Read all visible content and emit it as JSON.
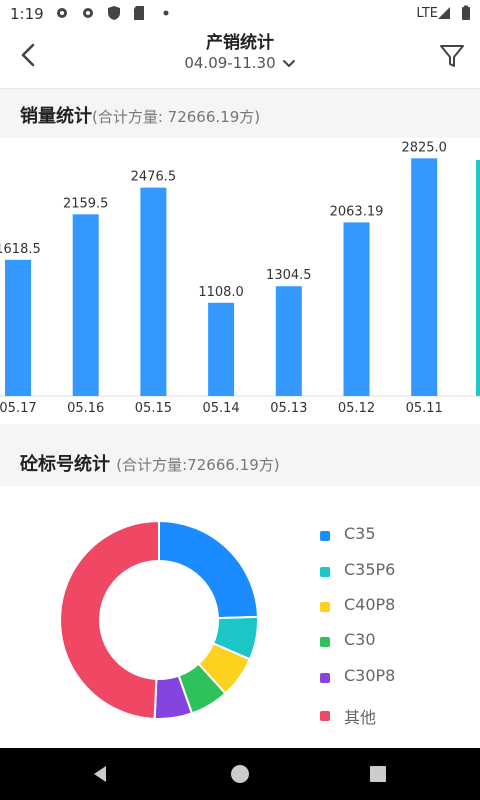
{
  "status_bar": {
    "time": "1:19",
    "network": "LTE"
  },
  "header": {
    "title": "产销统计",
    "date_range": "04.09-11.30"
  },
  "sales_section": {
    "title": "销量统计",
    "subtitle": "(合计方量: 72666.19方)"
  },
  "grade_section": {
    "title": "砼标号统计",
    "subtitle": "(合计方量:72666.19方)"
  },
  "colors": {
    "bar": "#3399ff",
    "accent_last": "#1fc7c7"
  },
  "chart_data": [
    {
      "type": "bar",
      "categories": [
        "05.17",
        "05.16",
        "05.15",
        "05.14",
        "05.13",
        "05.12",
        "05.11"
      ],
      "values": [
        1618.5,
        2159.5,
        2476.5,
        1108.0,
        1304.5,
        2063.19,
        2825.0
      ],
      "value_labels": [
        "1618.5",
        "2159.5",
        "2476.5",
        "1108.0",
        "1304.5",
        "2063.19",
        "2825.0"
      ],
      "ylim": [
        0,
        2900
      ],
      "grid": false
    },
    {
      "type": "pie",
      "categories": [
        "C35",
        "C35P6",
        "C40P8",
        "C30",
        "C30P8",
        "其他"
      ],
      "values": [
        24.5,
        7.0,
        6.8,
        6.3,
        6.1,
        49.3
      ],
      "colors": [
        "#1a8cff",
        "#1ac6c6",
        "#fcd21e",
        "#2fc25b",
        "#8543e0",
        "#f04864"
      ],
      "legend_position": "right"
    }
  ]
}
